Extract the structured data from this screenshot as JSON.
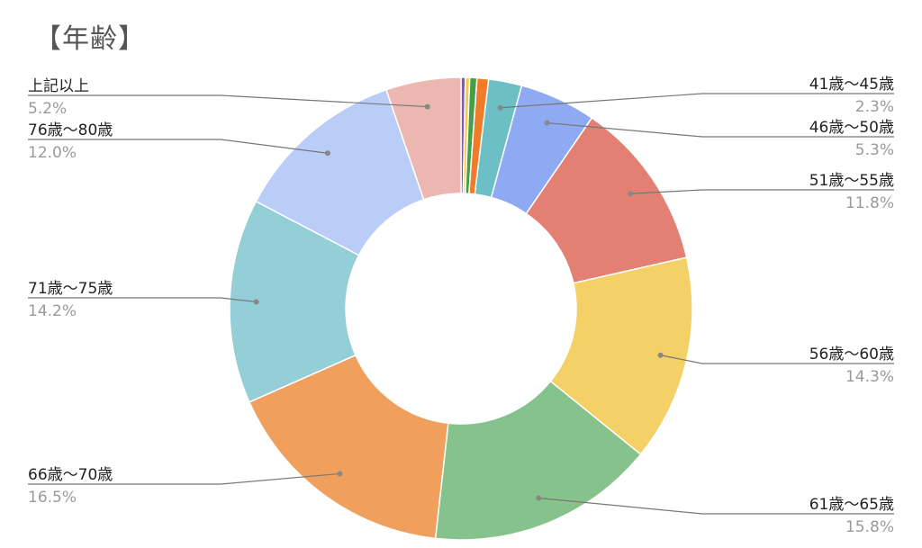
{
  "chart_data": {
    "type": "pie",
    "donut": true,
    "title": "【年齢】",
    "slices": [
      {
        "label": "",
        "value": 0.3,
        "color": "#7e57c2"
      },
      {
        "label": "",
        "value": 0.3,
        "color": "#f9c74f"
      },
      {
        "label": "",
        "value": 0.5,
        "color": "#43a047"
      },
      {
        "label": "",
        "value": 0.8,
        "color": "#f07c2a"
      },
      {
        "label": "41歳〜45歳",
        "value": 2.3,
        "display": "2.3%",
        "color": "#6cbfc5"
      },
      {
        "label": "46歳〜50歳",
        "value": 5.3,
        "display": "5.3%",
        "color": "#8eaaf2"
      },
      {
        "label": "51歳〜55歳",
        "value": 11.8,
        "display": "11.8%",
        "color": "#e38073"
      },
      {
        "label": "56歳〜60歳",
        "value": 14.3,
        "display": "14.3%",
        "color": "#f4d166"
      },
      {
        "label": "61歳〜65歳",
        "value": 15.8,
        "display": "15.8%",
        "color": "#86c28b"
      },
      {
        "label": "66歳〜70歳",
        "value": 16.5,
        "display": "16.5%",
        "color": "#f0a05c"
      },
      {
        "label": "71歳〜75歳",
        "value": 14.2,
        "display": "14.2%",
        "color": "#94cfd7"
      },
      {
        "label": "76歳〜80歳",
        "value": 12.0,
        "display": "12.0%",
        "color": "#bacdf8"
      },
      {
        "label": "上記以上",
        "value": 5.2,
        "display": "5.2%",
        "color": "#ebb7b0"
      }
    ],
    "legend": "none"
  }
}
